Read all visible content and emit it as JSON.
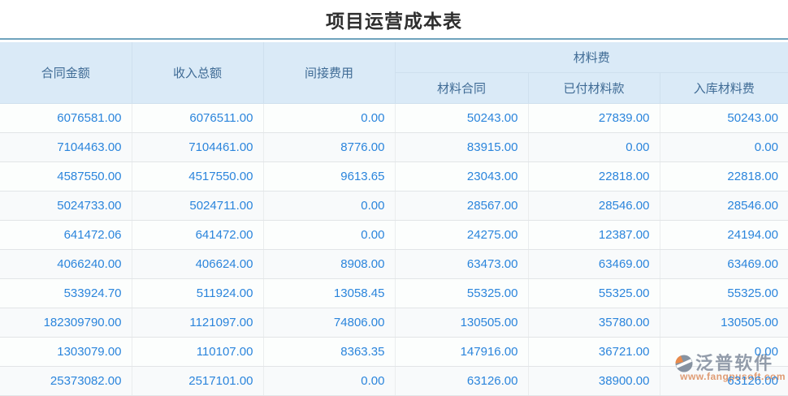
{
  "page": {
    "title": "项目运营成本表"
  },
  "table": {
    "header": {
      "contract_amount": "合同金额",
      "total_income": "收入总额",
      "indirect_cost": "间接费用",
      "material_group": "材料费",
      "material_contract": "材料合同",
      "paid_material": "已付材料款",
      "stocked_material": "入库材料费"
    },
    "rows": [
      [
        "6076581.00",
        "6076511.00",
        "0.00",
        "50243.00",
        "27839.00",
        "50243.00"
      ],
      [
        "7104463.00",
        "7104461.00",
        "8776.00",
        "83915.00",
        "0.00",
        "0.00"
      ],
      [
        "4587550.00",
        "4517550.00",
        "9613.65",
        "23043.00",
        "22818.00",
        "22818.00"
      ],
      [
        "5024733.00",
        "5024711.00",
        "0.00",
        "28567.00",
        "28546.00",
        "28546.00"
      ],
      [
        "641472.06",
        "641472.00",
        "0.00",
        "24275.00",
        "12387.00",
        "24194.00"
      ],
      [
        "4066240.00",
        "406624.00",
        "8908.00",
        "63473.00",
        "63469.00",
        "63469.00"
      ],
      [
        "533924.70",
        "511924.00",
        "13058.45",
        "55325.00",
        "55325.00",
        "55325.00"
      ],
      [
        "182309790.00",
        "1121097.00",
        "74806.00",
        "130505.00",
        "35780.00",
        "130505.00"
      ],
      [
        "1303079.00",
        "110107.00",
        "8363.35",
        "147916.00",
        "36721.00",
        "0.00"
      ],
      [
        "25373082.00",
        "2517101.00",
        "0.00",
        "63126.00",
        "38900.00",
        "63126.00"
      ]
    ]
  },
  "watermark": {
    "brand": "泛普软件",
    "url": "www.fangpusoft.com"
  },
  "colors": {
    "header_bg": "#daeaf7",
    "header_text": "#3f6b95",
    "value_text": "#2b85dc",
    "title_divider": "#6fa3bd",
    "row_border": "#e2e5e7",
    "watermark_brand": "#8a94a3",
    "watermark_url": "#dd9468",
    "watermark_orange": "#e8813c",
    "watermark_gray": "#7e8a9a"
  }
}
